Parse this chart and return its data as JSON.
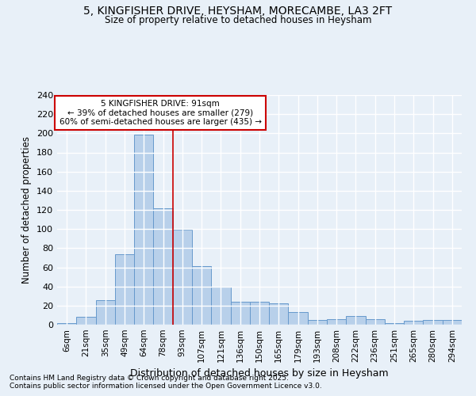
{
  "title_line1": "5, KINGFISHER DRIVE, HEYSHAM, MORECAMBE, LA3 2FT",
  "title_line2": "Size of property relative to detached houses in Heysham",
  "xlabel": "Distribution of detached houses by size in Heysham",
  "ylabel": "Number of detached properties",
  "bar_labels": [
    "6sqm",
    "21sqm",
    "35sqm",
    "49sqm",
    "64sqm",
    "78sqm",
    "93sqm",
    "107sqm",
    "121sqm",
    "136sqm",
    "150sqm",
    "165sqm",
    "179sqm",
    "193sqm",
    "208sqm",
    "222sqm",
    "236sqm",
    "251sqm",
    "265sqm",
    "280sqm",
    "294sqm"
  ],
  "bar_values": [
    2,
    8,
    26,
    74,
    199,
    122,
    99,
    61,
    40,
    24,
    24,
    22,
    13,
    5,
    6,
    9,
    6,
    2,
    4,
    5,
    5
  ],
  "bar_color": "#b8d0ea",
  "bar_edge_color": "#6699cc",
  "bg_color": "#e8f0f8",
  "grid_color": "#ffffff",
  "annotation_title": "5 KINGFISHER DRIVE: 91sqm",
  "annotation_line1": "← 39% of detached houses are smaller (279)",
  "annotation_line2": "60% of semi-detached houses are larger (435) →",
  "annotation_box_facecolor": "#ffffff",
  "annotation_border_color": "#cc0000",
  "property_line_color": "#cc0000",
  "property_line_x": 6,
  "ylim": [
    0,
    240
  ],
  "yticks": [
    0,
    20,
    40,
    60,
    80,
    100,
    120,
    140,
    160,
    180,
    200,
    220,
    240
  ],
  "footnote1": "Contains HM Land Registry data © Crown copyright and database right 2025.",
  "footnote2": "Contains public sector information licensed under the Open Government Licence v3.0."
}
